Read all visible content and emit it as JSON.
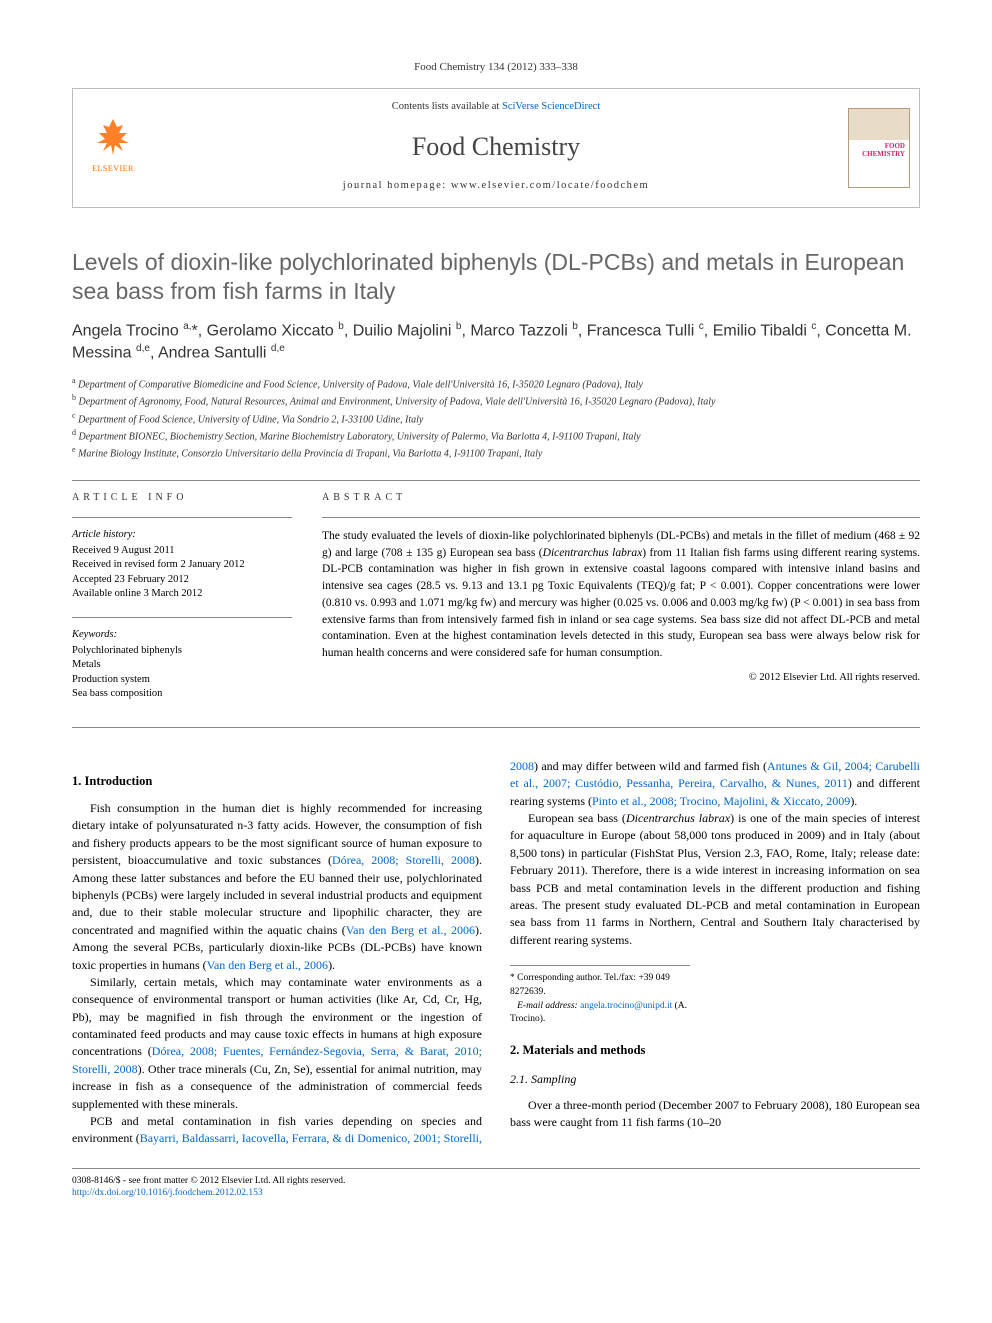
{
  "citation": "Food Chemistry 134 (2012) 333–338",
  "header": {
    "contents_prefix": "Contents lists available at ",
    "contents_link": "SciVerse ScienceDirect",
    "journal_name": "Food Chemistry",
    "homepage_prefix": "journal homepage: ",
    "homepage_url": "www.elsevier.com/locate/foodchem",
    "publisher": "ELSEVIER",
    "cover_text_line1": "FOOD",
    "cover_text_line2": "CHEMISTRY"
  },
  "title": "Levels of dioxin-like polychlorinated biphenyls (DL-PCBs) and metals in European sea bass from fish farms in Italy",
  "authors_html": "Angela Trocino <sup>a,</sup>*, Gerolamo Xiccato <sup>b</sup>, Duilio Majolini <sup>b</sup>, Marco Tazzoli <sup>b</sup>, Francesca Tulli <sup>c</sup>, Emilio Tibaldi <sup>c</sup>, Concetta M. Messina <sup>d,e</sup>, Andrea Santulli <sup>d,e</sup>",
  "affiliations": [
    {
      "sup": "a",
      "text": "Department of Comparative Biomedicine and Food Science, University of Padova, Viale dell'Università 16, I-35020 Legnaro (Padova), Italy"
    },
    {
      "sup": "b",
      "text": "Department of Agronomy, Food, Natural Resources, Animal and Environment, University of Padova, Viale dell'Università 16, I-35020 Legnaro (Padova), Italy"
    },
    {
      "sup": "c",
      "text": "Department of Food Science, University of Udine, Via Sondrio 2, I-33100 Udine, Italy"
    },
    {
      "sup": "d",
      "text": "Department BIONEC, Biochemistry Section, Marine Biochemistry Laboratory, University of Palermo, Via Barlotta 4, I-91100 Trapani, Italy"
    },
    {
      "sup": "e",
      "text": "Marine Biology Institute, Consorzio Universitario della Provincia di Trapani, Via Barlotta 4, I-91100 Trapani, Italy"
    }
  ],
  "article_info": {
    "heading": "ARTICLE INFO",
    "history_title": "Article history:",
    "history": [
      "Received 9 August 2011",
      "Received in revised form 2 January 2012",
      "Accepted 23 February 2012",
      "Available online 3 March 2012"
    ],
    "keywords_title": "Keywords:",
    "keywords": [
      "Polychlorinated biphenyls",
      "Metals",
      "Production system",
      "Sea bass composition"
    ]
  },
  "abstract": {
    "heading": "ABSTRACT",
    "text": "The study evaluated the levels of dioxin-like polychlorinated biphenyls (DL-PCBs) and metals in the fillet of medium (468 ± 92 g) and large (708 ± 135 g) European sea bass (Dicentrarchus labrax) from 11 Italian fish farms using different rearing systems. DL-PCB contamination was higher in fish grown in extensive coastal lagoons compared with intensive inland basins and intensive sea cages (28.5 vs. 9.13 and 13.1 pg Toxic Equivalents (TEQ)/g fat; P < 0.001). Copper concentrations were lower (0.810 vs. 0.993 and 1.071 mg/kg fw) and mercury was higher (0.025 vs. 0.006 and 0.003 mg/kg fw) (P < 0.001) in sea bass from extensive farms than from intensively farmed fish in inland or sea cage systems. Sea bass size did not affect DL-PCB and metal contamination. Even at the highest contamination levels detected in this study, European sea bass were always below risk for human health concerns and were considered safe for human consumption.",
    "copyright": "© 2012 Elsevier Ltd. All rights reserved."
  },
  "body": {
    "s1_title": "1. Introduction",
    "s1_p1a": "Fish consumption in the human diet is highly recommended for increasing dietary intake of polyunsaturated n-3 fatty acids. However, the consumption of fish and fishery products appears to be the most significant source of human exposure to persistent, bioaccumulative and toxic substances (",
    "s1_p1_ref1": "Dórea, 2008; Storelli, 2008",
    "s1_p1b": "). Among these latter substances and before the EU banned their use, polychlorinated biphenyls (PCBs) were largely included in several industrial products and equipment and, due to their stable molecular structure and lipophilic character, they are concentrated and magnified within the aquatic chains (",
    "s1_p1_ref2": "Van den Berg et al., 2006",
    "s1_p1c": "). Among the several PCBs, particularly dioxin-like PCBs (DL-PCBs) have known toxic properties in humans (",
    "s1_p1_ref3": "Van den Berg et al., 2006",
    "s1_p1d": ").",
    "s1_p2a": "Similarly, certain metals, which may contaminate water environments as a consequence of environmental transport or human activities (like Ar, Cd, Cr, Hg, Pb), may be magnified in fish through the environment or the ingestion of contaminated feed products and may cause toxic effects in humans at high exposure concentrations (",
    "s1_p2_ref1": "Dórea, 2008; Fuentes, Fernández-Segovia, Serra, & Barat, 2010; Storelli, 2008",
    "s1_p2b": "). Other trace minerals (Cu, Zn, Se), essential for animal ",
    "s1_p2c": "nutrition, may increase in fish as a consequence of the administration of commercial feeds supplemented with these minerals.",
    "s1_p3a": "PCB and metal contamination in fish varies depending on species and environment (",
    "s1_p3_ref1": "Bayarri, Baldassarri, Iacovella, Ferrara, & di Domenico, 2001; Storelli, 2008",
    "s1_p3b": ") and may differ between wild and farmed fish (",
    "s1_p3_ref2": "Antunes & Gil, 2004; Carubelli et al., 2007; Custódio, Pessanha, Pereira, Carvalho, & Nunes, 2011",
    "s1_p3c": ") and different rearing systems (",
    "s1_p3_ref3": "Pinto et al., 2008; Trocino, Majolini, & Xiccato, 2009",
    "s1_p3d": ").",
    "s1_p4": "European sea bass (Dicentrarchus labrax) is one of the main species of interest for aquaculture in Europe (about 58,000 tons produced in 2009) and in Italy (about 8,500 tons) in particular (FishStat Plus, Version 2.3, FAO, Rome, Italy; release date: February 2011). Therefore, there is a wide interest in increasing information on sea bass PCB and metal contamination levels in the different production and fishing areas. The present study evaluated DL-PCB and metal contamination in European sea bass from 11 farms in Northern, Central and Southern Italy characterised by different rearing systems.",
    "s2_title": "2. Materials and methods",
    "s21_title": "2.1. Sampling",
    "s21_p1": "Over a three-month period (December 2007 to February 2008), 180 European sea bass were caught from 11 fish farms (10–20"
  },
  "corresponding": {
    "star": "*",
    "line1": "Corresponding author. Tel./fax: +39 049 8272639.",
    "email_label": "E-mail address:",
    "email": "angela.trocino@unipd.it",
    "email_suffix": "(A. Trocino)."
  },
  "footer": {
    "line1": "0308-8146/$ - see front matter © 2012 Elsevier Ltd. All rights reserved.",
    "doi": "http://dx.doi.org/10.1016/j.foodchem.2012.02.153"
  },
  "colors": {
    "link": "#0066cc",
    "title_gray": "#666666",
    "elsevier_orange": "#ff6a00",
    "cover_pink": "#d11f6e"
  }
}
